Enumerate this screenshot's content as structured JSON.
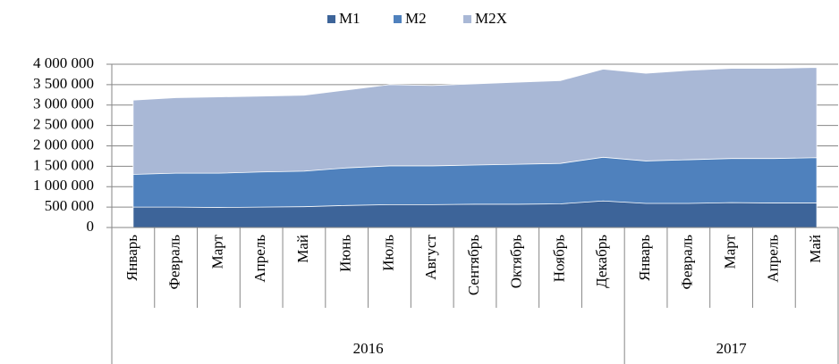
{
  "chart_data": {
    "type": "area",
    "categories": [
      "Январь",
      "Февраль",
      "Март",
      "Апрель",
      "Май",
      "Июнь",
      "Июль",
      "Август",
      "Сентябрь",
      "Октябрь",
      "Ноябрь",
      "Декабрь",
      "Январь",
      "Февраль",
      "Март",
      "Апрель",
      "Май"
    ],
    "groups": [
      {
        "label": "2016",
        "span": 12
      },
      {
        "label": "2017",
        "span": 5
      }
    ],
    "series": [
      {
        "name": "M1",
        "color": "#3d6499",
        "values": [
          500000,
          500000,
          490000,
          500000,
          510000,
          540000,
          560000,
          560000,
          570000,
          570000,
          580000,
          650000,
          590000,
          590000,
          610000,
          600000,
          600000
        ]
      },
      {
        "name": "M2",
        "color": "#4f81bd",
        "values": [
          1300000,
          1330000,
          1330000,
          1360000,
          1380000,
          1460000,
          1510000,
          1510000,
          1530000,
          1550000,
          1570000,
          1720000,
          1630000,
          1660000,
          1690000,
          1690000,
          1710000
        ]
      },
      {
        "name": "M2X",
        "color": "#a9b8d6",
        "values": [
          3120000,
          3180000,
          3200000,
          3220000,
          3240000,
          3370000,
          3500000,
          3480000,
          3520000,
          3560000,
          3600000,
          3880000,
          3780000,
          3850000,
          3900000,
          3900000,
          3920000
        ]
      }
    ],
    "ylim": [
      0,
      4000000
    ],
    "yticks": [
      0,
      {
        "value": 500000,
        "label": "500 000"
      },
      {
        "value": 1000000,
        "label": "1 000 000"
      },
      {
        "value": 1500000,
        "label": "1 500 000"
      },
      {
        "value": 2000000,
        "label": "2 000 000"
      },
      {
        "value": 2500000,
        "label": "2 500 000"
      },
      {
        "value": 3000000,
        "label": "3 000 000"
      },
      {
        "value": 3500000,
        "label": "3 500 000"
      },
      {
        "value": 4000000,
        "label": "4 000 000"
      }
    ],
    "grid": true,
    "legend": "top"
  }
}
